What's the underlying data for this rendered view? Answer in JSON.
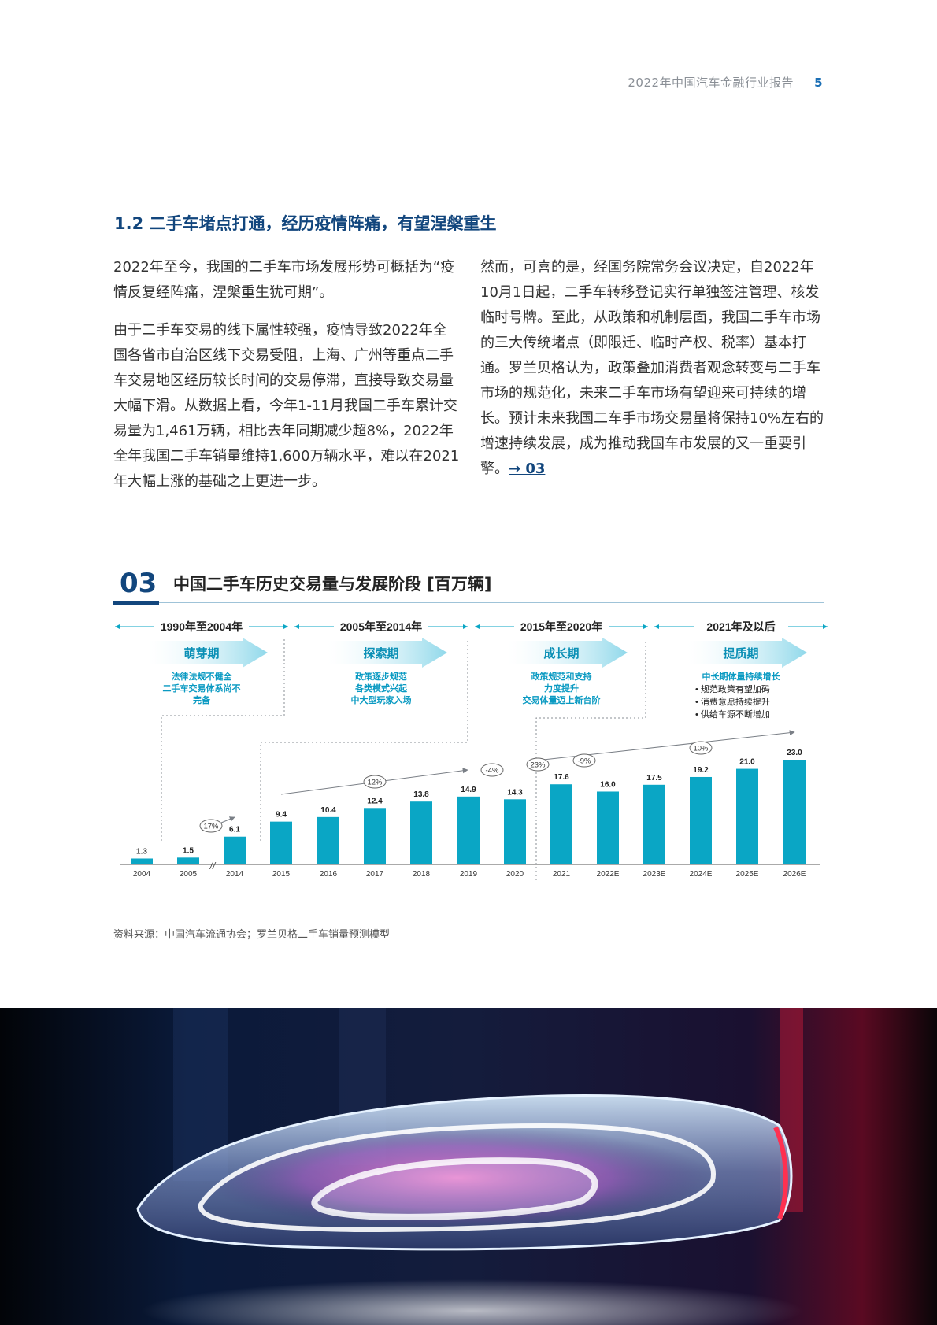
{
  "header": {
    "title": "2022年中国汽车金融行业报告",
    "page_number": "5"
  },
  "section": {
    "title": "1.2 二手车堵点打通，经历疫情阵痛，有望涅槃重生"
  },
  "body": {
    "left_p1": "2022年至今，我国的二手车市场发展形势可概括为“疫情反复经阵痛，涅槃重生犹可期”。",
    "left_p2": "由于二手车交易的线下属性较强，疫情导致2022年全国各省市自治区线下交易受阻，上海、广州等重点二手车交易地区经历较长时间的交易停滞，直接导致交易量大幅下滑。从数据上看，今年1-11月我国二手车累计交易量为1,461万辆，相比去年同期减少超8%，2022年全年我国二手车销量维持1,600万辆水平，难以在2021年大幅上涨的基础之上更进一步。",
    "right_p1": "然而，可喜的是，经国务院常务会议决定，自2022年10月1日起，二手车转移登记实行单独签注管理、核发临时号牌。至此，从政策和机制层面，我国二手车市场的三大传统堵点（即限迁、临时产权、税率）基本打通。罗兰贝格认为，政策叠加消费者观念转变与二手车市场的规范化，未来二手车市场有望迎来可持续的增长。预计未来我国二车手市场交易量将保持10%左右的增速持续发展，成为推动我国车市发展的又一重要引擎。",
    "right_link": "→ 03"
  },
  "figure": {
    "number": "03",
    "title": "中国二手车历史交易量与发展阶段 [百万辆]",
    "source": "资料来源：中国汽车流通协会；罗兰贝格二手车销量预测模型"
  },
  "chart_data": {
    "type": "bar",
    "title": "中国二手车历史交易量与发展阶段 [百万辆]",
    "unit": "百万辆",
    "categories": [
      "2004",
      "2005",
      "2014",
      "2015",
      "2016",
      "2017",
      "2018",
      "2019",
      "2020",
      "2021",
      "2022E",
      "2023E",
      "2024E",
      "2025E",
      "2026E"
    ],
    "values": [
      1.3,
      1.5,
      6.1,
      9.4,
      10.4,
      12.4,
      13.8,
      14.9,
      14.3,
      17.6,
      16.0,
      17.5,
      19.2,
      21.0,
      23.0
    ],
    "value_labels": [
      "1.3",
      "1.5",
      "6.1",
      "9.4",
      "10.4",
      "12.4",
      "13.8",
      "14.9",
      "14.3",
      "17.6",
      "16.0",
      "17.5",
      "19.2",
      "21.0",
      "23.0"
    ],
    "axis_break": "//",
    "bar_color": "#0aa6c5",
    "growth_labels": [
      "17%",
      "12%",
      "-4%",
      "23%",
      "-9%",
      "10%"
    ],
    "stages": [
      {
        "period": "1990年至2004年",
        "name": "萌芽期",
        "desc": [
          "法律法规不健全",
          "二手车交易体系尚不",
          "完备"
        ]
      },
      {
        "period": "2005年至2014年",
        "name": "探索期",
        "desc": [
          "政策逐步规范",
          "各类模式兴起",
          "中大型玩家入场"
        ]
      },
      {
        "period": "2015年至2020年",
        "name": "成长期",
        "desc": [
          "政策规范和支持",
          "力度提升",
          "交易体量迈上新台阶"
        ]
      },
      {
        "period": "2021年及以后",
        "name": "提质期",
        "desc_title": "中长期体量持续增长",
        "bullets": [
          "规范政策有望加码",
          "消费意愿持续提升",
          "供给车源不断增加"
        ]
      }
    ]
  },
  "colors": {
    "navy": "#12467d",
    "teal": "#0aa6c5",
    "text": "#333333"
  }
}
